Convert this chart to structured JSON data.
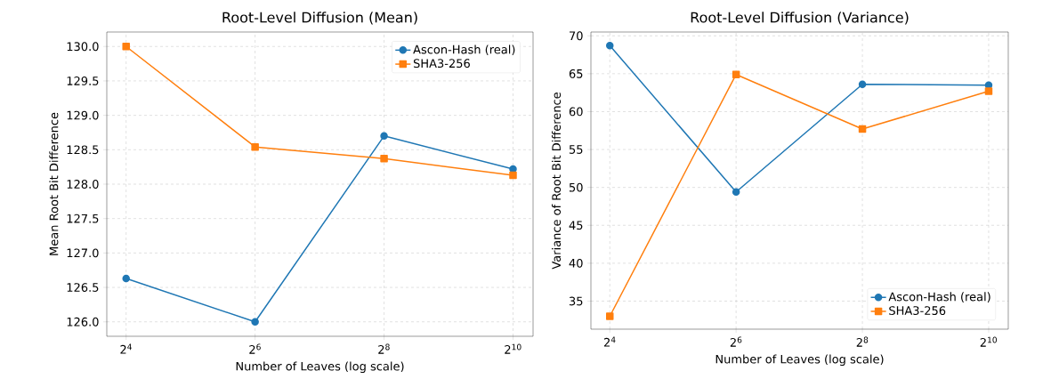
{
  "chart_data": [
    {
      "type": "line",
      "title": "Root-Level Diffusion (Mean)",
      "xlabel": "Number of Leaves (log scale)",
      "ylabel": "Mean Root Bit Difference",
      "log": "x",
      "grid": true,
      "legend": "top right",
      "line_style": "solid",
      "x": [
        16,
        64,
        256,
        1024
      ],
      "xlim": [
        13,
        1270
      ],
      "ylim": [
        125.79,
        130.21
      ],
      "xticks": [
        {
          "value": 16,
          "label": "2$^{4}$"
        },
        {
          "value": 64,
          "label": "2$^{6}$"
        },
        {
          "value": 256,
          "label": "2$^{8}$"
        },
        {
          "value": 1024,
          "label": "2$^{10}$"
        }
      ],
      "yticks": [
        {
          "value": 126,
          "label": "126.0"
        },
        {
          "value": 126.5,
          "label": "126.5"
        },
        {
          "value": 127,
          "label": "127.0"
        },
        {
          "value": 127.5,
          "label": "127.5"
        },
        {
          "value": 128,
          "label": "128.0"
        },
        {
          "value": 128.5,
          "label": "128.5"
        },
        {
          "value": 129,
          "label": "129.0"
        },
        {
          "value": 129.5,
          "label": "129.5"
        },
        {
          "value": 130,
          "label": "130.0"
        }
      ],
      "series": [
        {
          "name": "Ascon-Hash (real)",
          "color": "#1f77b4",
          "marker": "circle",
          "values": [
            126.63,
            126.0,
            128.7,
            128.22
          ]
        },
        {
          "name": "SHA3-256",
          "color": "#ff7f0e",
          "marker": "square",
          "values": [
            130.0,
            128.54,
            128.37,
            128.13
          ]
        }
      ]
    },
    {
      "type": "line",
      "title": "Root-Level Diffusion (Variance)",
      "xlabel": "Number of Leaves (log scale)",
      "ylabel": "Variance of Root Bit Difference",
      "log": "x",
      "grid": true,
      "legend": "bottom right",
      "line_style": "solid",
      "x": [
        16,
        64,
        256,
        1024
      ],
      "xlim": [
        13,
        1270
      ],
      "ylim": [
        31.3,
        70.5
      ],
      "xticks": [
        {
          "value": 16,
          "label": "2$^{4}$"
        },
        {
          "value": 64,
          "label": "2$^{6}$"
        },
        {
          "value": 256,
          "label": "2$^{8}$"
        },
        {
          "value": 1024,
          "label": "2$^{10}$"
        }
      ],
      "yticks": [
        35,
        40,
        45,
        50,
        55,
        60,
        65,
        70
      ],
      "series": [
        {
          "name": "Ascon-Hash (real)",
          "color": "#1f77b4",
          "marker": "circle",
          "values": [
            68.7,
            49.4,
            63.6,
            63.5
          ]
        },
        {
          "name": "SHA3-256",
          "color": "#ff7f0e",
          "marker": "square",
          "values": [
            33.0,
            64.9,
            57.7,
            62.7
          ]
        }
      ]
    }
  ]
}
